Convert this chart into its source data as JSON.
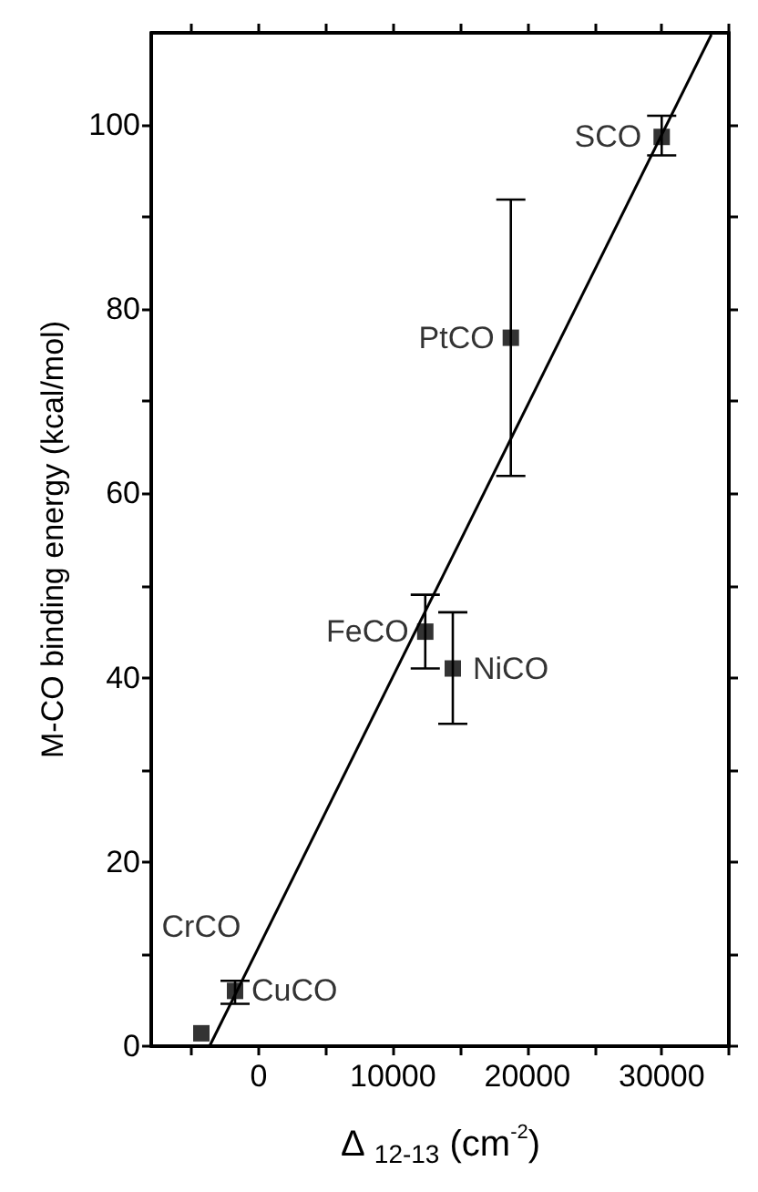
{
  "chart_data": {
    "type": "scatter",
    "xlabel": "Δ $_{12-13}$ (cm$^{-2}$)",
    "ylabel": "M-CO binding energy (kcal/mol)",
    "x": [
      -4270,
      -1760,
      12400,
      14450,
      18770,
      30000
    ],
    "series": [
      {
        "color": "#000000",
        "values": [
          1.4,
          6.0,
          45.0,
          41.0,
          76.9,
          98.7
        ],
        "errors": [
          null,
          [
            4.6,
            7.1
          ],
          [
            41.0,
            49.0
          ],
          [
            35.0,
            47.1
          ],
          [
            61.9,
            91.9
          ],
          [
            96.7,
            101.0
          ]
        ]
      },
      {
        "type": "line",
        "marker": "none",
        "color": "#000000",
        "x": [
          -3660,
          33700
        ],
        "values": [
          0,
          109.8
        ]
      }
    ],
    "annotations": [
      {
        "text": "CrCO",
        "x": -4270,
        "y": 1.4
      },
      {
        "text": "CuCO",
        "x": -1760,
        "y": 6.0
      },
      {
        "text": "FeCO",
        "x": 12400,
        "y": 45.0
      },
      {
        "text": "NiCO",
        "x": 14450,
        "y": 41.0
      },
      {
        "text": "PtCO",
        "x": 18770,
        "y": 76.9
      },
      {
        "text": "SCO",
        "x": 30000,
        "y": 98.7
      }
    ],
    "xlim": [
      -8000,
      35000
    ],
    "ylim": [
      0,
      110
    ],
    "xticks": [
      {
        "value": -5000,
        "label": null
      },
      0,
      {
        "value": 5000,
        "label": null
      },
      10000,
      {
        "value": 15000,
        "label": null
      },
      20000,
      {
        "value": 25000,
        "label": null
      },
      30000,
      {
        "value": 35000,
        "label": null
      }
    ],
    "yticks": [
      0,
      {
        "value": 10,
        "label": null
      },
      20,
      {
        "value": 30,
        "label": null
      },
      40,
      {
        "value": 50,
        "label": null
      },
      60,
      {
        "value": 70,
        "label": null
      },
      80,
      {
        "value": 90,
        "label": null
      },
      100
    ],
    "marker": "square",
    "grid": false
  }
}
